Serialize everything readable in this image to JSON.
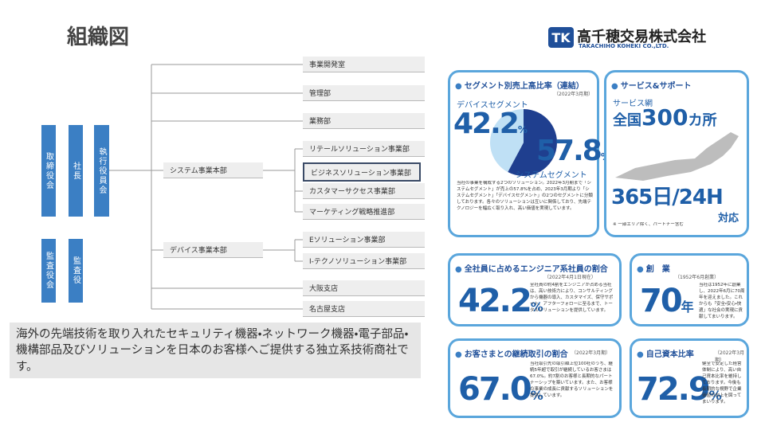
{
  "title": "組織図",
  "logo": {
    "mark": "TK",
    "name": "高千穂交易株式会社",
    "name_en": "TAKACHIHO KOHEKI CO.,LTD."
  },
  "org": {
    "executives": [
      "取締役会",
      "社長",
      "執行役員会"
    ],
    "auditors": [
      "監査役会",
      "監査役"
    ],
    "top_departments": [
      "事業開発室",
      "管理部",
      "業務部"
    ],
    "divisions": [
      {
        "name": "システム事業本部",
        "departments": [
          "リテールソリューション事業部",
          "ビジネスソリューション事業部",
          "カスタマーサクセス事業部",
          "マーケティング戦略推進部"
        ]
      },
      {
        "name": "デバイス事業本部",
        "departments": [
          "Eソリューション事業部",
          "I-テクノソリューション事業部"
        ]
      }
    ],
    "branches": [
      "大阪支店",
      "名古屋支店"
    ]
  },
  "description": "海外の先端技術を取り入れたセキュリティ機器・ネットワーク機器・電子部品・機構部品及びソリューションを日本のお客様へご提供する独立系技術商社です。",
  "segment": {
    "title": "セグメント別売上高比率（連結）",
    "period": "（2022年3月期）",
    "unit": "%",
    "slices": [
      {
        "name": "デバイスセグメント",
        "value": 42.2,
        "color": "#bfe0f5"
      },
      {
        "name": "システムセグメント",
        "value": 57.8,
        "color": "#1f3f8f"
      }
    ],
    "text": "当社の事業を構成する2つのソリューション。2022年3月期まで「システムセグメント」が売上の57.8%を占め、2023年3月期より「システムセグメント」「デバイスセグメント」の2つのセグメントに分類しております。各々のソリューションは互いに関係しており、先端テクノロジーを幅広く取り入れ、高い価値を実現しています。"
  },
  "service": {
    "title": "サービス&サポート",
    "network_label": "サービス網",
    "prefix": "全国",
    "count": "300",
    "suffix": "カ所",
    "hours": "365日/24H",
    "support": "対応",
    "note": "※ 一部エリア除く、パートナー含む"
  },
  "engineers": {
    "title": "全社員に占めるエンジニア系社員の割合",
    "period": "（2022年4月1日現在）",
    "value": "42.2",
    "unit": "%",
    "text": "全社員の約4割をエンジニアが占める当社は、高い技術力により、コンサルティングから機器の導入、カスタマイズ、保守サポート、アフターフォローに至るまで、トータルソリューションを提供しています。"
  },
  "founded": {
    "title": "創　業",
    "period": "（1952年6月創業）",
    "value": "70",
    "unit": "年",
    "text": "当社は1952年に創業し、2022年6月に70周年を迎えました。これからも「安全・安心・快適」な社会の実現に貢献してまいります。"
  },
  "retention": {
    "title": "お客さまとの継続取引の割合",
    "period": "（2022年3月期）",
    "value": "67.0",
    "unit": "%",
    "text": "当社取引先の取引額上位100社のうち、継続5年超で取引が継続しているお客さまは67.0%。約7割のお客様と長期的なパートナーシップを築いています。また、お客様の事業の成長に貢献するソリューションを提供しています。"
  },
  "equity": {
    "title": "自己資本比率",
    "period": "（2022年3月期）",
    "value": "72.9",
    "unit": "%",
    "text": "健全で安定した経営体制により、高い自己資本比率を維持しております。今後も長期的な視野で企業価値の向上を図ってまいります。"
  }
}
